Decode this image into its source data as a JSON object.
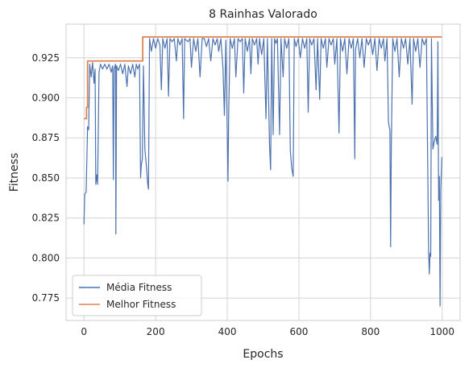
{
  "chart_data": {
    "type": "line",
    "title": "8 Rainhas Valorado",
    "xlabel": "Epochs",
    "ylabel": "Fitness",
    "xlim": [
      -50,
      1050
    ],
    "ylim": [
      0.761,
      0.946
    ],
    "xticks": [
      0,
      200,
      400,
      600,
      800,
      1000
    ],
    "yticks": [
      0.775,
      0.8,
      0.825,
      0.85,
      0.875,
      0.9,
      0.925
    ],
    "grid": true,
    "legend_position": "lower-left",
    "series": [
      {
        "name": "Média Fitness",
        "color": "#4c72b0",
        "points": [
          [
            0,
            0.821
          ],
          [
            2,
            0.84
          ],
          [
            6,
            0.841
          ],
          [
            10,
            0.882
          ],
          [
            13,
            0.88
          ],
          [
            16,
            0.921
          ],
          [
            20,
            0.913
          ],
          [
            24,
            0.922
          ],
          [
            28,
            0.909
          ],
          [
            31,
            0.918
          ],
          [
            33,
            0.846
          ],
          [
            36,
            0.852
          ],
          [
            38,
            0.846
          ],
          [
            42,
            0.916
          ],
          [
            46,
            0.921
          ],
          [
            52,
            0.918
          ],
          [
            58,
            0.921
          ],
          [
            64,
            0.918
          ],
          [
            70,
            0.921
          ],
          [
            76,
            0.916
          ],
          [
            80,
            0.92
          ],
          [
            82,
            0.849
          ],
          [
            84,
            0.918
          ],
          [
            88,
            0.921
          ],
          [
            89,
            0.815
          ],
          [
            91,
            0.92
          ],
          [
            96,
            0.917
          ],
          [
            102,
            0.921
          ],
          [
            108,
            0.915
          ],
          [
            114,
            0.921
          ],
          [
            120,
            0.907
          ],
          [
            124,
            0.92
          ],
          [
            130,
            0.915
          ],
          [
            136,
            0.921
          ],
          [
            142,
            0.913
          ],
          [
            146,
            0.921
          ],
          [
            150,
            0.918
          ],
          [
            155,
            0.921
          ],
          [
            158,
            0.85
          ],
          [
            160,
            0.858
          ],
          [
            163,
            0.862
          ],
          [
            166,
            0.92
          ],
          [
            170,
            0.868
          ],
          [
            174,
            0.858
          ],
          [
            178,
            0.846
          ],
          [
            180,
            0.843
          ],
          [
            183,
            0.937
          ],
          [
            188,
            0.929
          ],
          [
            194,
            0.937
          ],
          [
            200,
            0.931
          ],
          [
            206,
            0.937
          ],
          [
            212,
            0.933
          ],
          [
            216,
            0.905
          ],
          [
            220,
            0.937
          ],
          [
            226,
            0.931
          ],
          [
            232,
            0.937
          ],
          [
            236,
            0.901
          ],
          [
            240,
            0.937
          ],
          [
            246,
            0.935
          ],
          [
            252,
            0.937
          ],
          [
            258,
            0.923
          ],
          [
            262,
            0.937
          ],
          [
            268,
            0.933
          ],
          [
            274,
            0.937
          ],
          [
            278,
            0.887
          ],
          [
            281,
            0.937
          ],
          [
            290,
            0.935
          ],
          [
            296,
            0.937
          ],
          [
            300,
            0.919
          ],
          [
            306,
            0.937
          ],
          [
            312,
            0.929
          ],
          [
            318,
            0.937
          ],
          [
            324,
            0.913
          ],
          [
            330,
            0.937
          ],
          [
            336,
            0.937
          ],
          [
            342,
            0.932
          ],
          [
            348,
            0.937
          ],
          [
            354,
            0.923
          ],
          [
            360,
            0.937
          ],
          [
            366,
            0.933
          ],
          [
            372,
            0.937
          ],
          [
            376,
            0.929
          ],
          [
            382,
            0.937
          ],
          [
            388,
            0.919
          ],
          [
            392,
            0.889
          ],
          [
            396,
            0.936
          ],
          [
            402,
            0.848
          ],
          [
            404,
            0.891
          ],
          [
            408,
            0.937
          ],
          [
            414,
            0.931
          ],
          [
            420,
            0.937
          ],
          [
            424,
            0.913
          ],
          [
            430,
            0.937
          ],
          [
            436,
            0.935
          ],
          [
            442,
            0.937
          ],
          [
            446,
            0.903
          ],
          [
            450,
            0.937
          ],
          [
            456,
            0.929
          ],
          [
            462,
            0.937
          ],
          [
            466,
            0.915
          ],
          [
            470,
            0.937
          ],
          [
            476,
            0.933
          ],
          [
            482,
            0.937
          ],
          [
            486,
            0.921
          ],
          [
            490,
            0.937
          ],
          [
            496,
            0.927
          ],
          [
            502,
            0.937
          ],
          [
            508,
            0.887
          ],
          [
            512,
            0.937
          ],
          [
            518,
            0.87
          ],
          [
            521,
            0.855
          ],
          [
            524,
            0.937
          ],
          [
            528,
            0.877
          ],
          [
            532,
            0.937
          ],
          [
            536,
            0.934
          ],
          [
            540,
            0.937
          ],
          [
            546,
            0.877
          ],
          [
            550,
            0.937
          ],
          [
            556,
            0.913
          ],
          [
            560,
            0.937
          ],
          [
            566,
            0.931
          ],
          [
            572,
            0.937
          ],
          [
            576,
            0.867
          ],
          [
            580,
            0.856
          ],
          [
            584,
            0.851
          ],
          [
            587,
            0.937
          ],
          [
            592,
            0.932
          ],
          [
            598,
            0.937
          ],
          [
            604,
            0.925
          ],
          [
            610,
            0.937
          ],
          [
            616,
            0.931
          ],
          [
            622,
            0.937
          ],
          [
            626,
            0.891
          ],
          [
            630,
            0.937
          ],
          [
            636,
            0.933
          ],
          [
            642,
            0.937
          ],
          [
            648,
            0.905
          ],
          [
            652,
            0.937
          ],
          [
            658,
            0.899
          ],
          [
            662,
            0.937
          ],
          [
            668,
            0.931
          ],
          [
            674,
            0.937
          ],
          [
            678,
            0.919
          ],
          [
            684,
            0.937
          ],
          [
            690,
            0.933
          ],
          [
            696,
            0.937
          ],
          [
            700,
            0.921
          ],
          [
            706,
            0.937
          ],
          [
            712,
            0.878
          ],
          [
            716,
            0.937
          ],
          [
            722,
            0.929
          ],
          [
            728,
            0.937
          ],
          [
            734,
            0.915
          ],
          [
            740,
            0.937
          ],
          [
            746,
            0.931
          ],
          [
            752,
            0.937
          ],
          [
            756,
            0.862
          ],
          [
            758,
            0.93
          ],
          [
            764,
            0.937
          ],
          [
            770,
            0.925
          ],
          [
            776,
            0.937
          ],
          [
            782,
            0.919
          ],
          [
            788,
            0.937
          ],
          [
            794,
            0.933
          ],
          [
            800,
            0.937
          ],
          [
            806,
            0.927
          ],
          [
            812,
            0.937
          ],
          [
            818,
            0.917
          ],
          [
            824,
            0.937
          ],
          [
            830,
            0.931
          ],
          [
            836,
            0.937
          ],
          [
            840,
            0.923
          ],
          [
            846,
            0.937
          ],
          [
            850,
            0.885
          ],
          [
            852,
            0.882
          ],
          [
            854,
            0.88
          ],
          [
            856,
            0.807
          ],
          [
            858,
            0.871
          ],
          [
            862,
            0.937
          ],
          [
            868,
            0.929
          ],
          [
            874,
            0.937
          ],
          [
            880,
            0.913
          ],
          [
            886,
            0.937
          ],
          [
            892,
            0.931
          ],
          [
            898,
            0.937
          ],
          [
            904,
            0.921
          ],
          [
            910,
            0.937
          ],
          [
            916,
            0.896
          ],
          [
            920,
            0.937
          ],
          [
            926,
            0.929
          ],
          [
            932,
            0.937
          ],
          [
            938,
            0.919
          ],
          [
            944,
            0.937
          ],
          [
            950,
            0.933
          ],
          [
            956,
            0.937
          ],
          [
            962,
            0.805
          ],
          [
            964,
            0.79
          ],
          [
            966,
            0.803
          ],
          [
            968,
            0.801
          ],
          [
            970,
            0.937
          ],
          [
            974,
            0.868
          ],
          [
            978,
            0.873
          ],
          [
            982,
            0.876
          ],
          [
            986,
            0.871
          ],
          [
            988,
            0.935
          ],
          [
            990,
            0.836
          ],
          [
            992,
            0.851
          ],
          [
            994,
            0.77
          ],
          [
            996,
            0.842
          ],
          [
            999,
            0.863
          ]
        ]
      },
      {
        "name": "Melhor Fitness",
        "color": "#dd8452",
        "points": [
          [
            0,
            0.887
          ],
          [
            6,
            0.887
          ],
          [
            7,
            0.894
          ],
          [
            9,
            0.894
          ],
          [
            10,
            0.923
          ],
          [
            163,
            0.923
          ],
          [
            164,
            0.938
          ],
          [
            999,
            0.938
          ]
        ]
      }
    ]
  }
}
